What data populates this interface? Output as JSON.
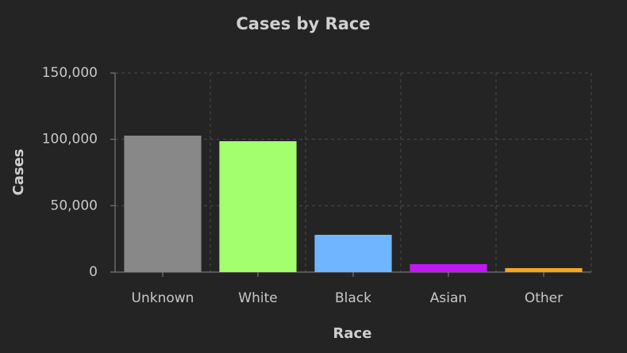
{
  "chart_data": {
    "type": "bar",
    "title": "Cases by Race",
    "x_label": "Race",
    "y_label": "Cases",
    "categories": [
      "Unknown",
      "White",
      "Black",
      "Asian",
      "Other"
    ],
    "values": [
      102800,
      98600,
      28100,
      6000,
      3000
    ],
    "colors": [
      "#888888",
      "#a3ff6e",
      "#70b5ff",
      "#c117f5",
      "#f5a623"
    ],
    "ylim": [
      0,
      150000
    ],
    "yticks": [
      0,
      {
        "value": 50000,
        "label": "50,000"
      },
      {
        "value": 100000,
        "label": "100,000"
      },
      {
        "value": 150000,
        "label": "150,000"
      }
    ],
    "grid": true
  }
}
